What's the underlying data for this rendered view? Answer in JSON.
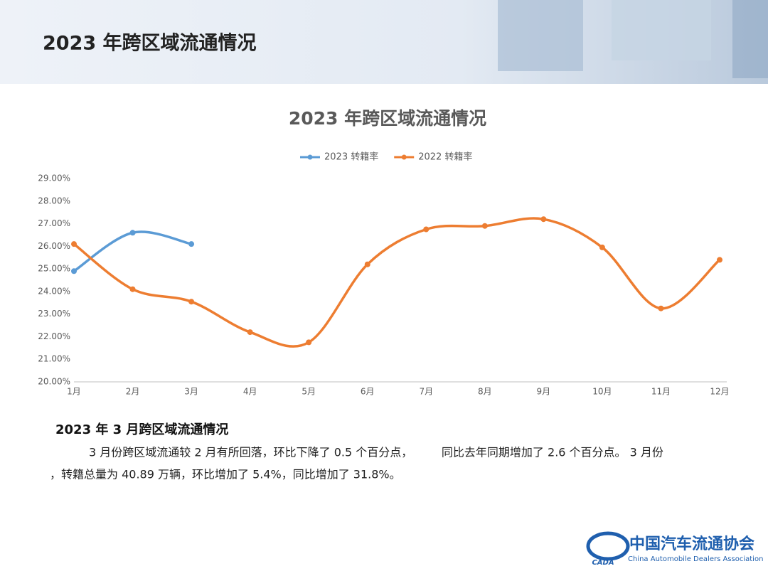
{
  "header": {
    "title": "2023 年跨区域流通情况"
  },
  "chart_data": {
    "type": "line",
    "title": "2023 年跨区域流通情况",
    "categories": [
      "1月",
      "2月",
      "3月",
      "4月",
      "5月",
      "6月",
      "7月",
      "8月",
      "9月",
      "10月",
      "11月",
      "12月"
    ],
    "series": [
      {
        "name": "2023 转籍率",
        "color": "#5b9bd5",
        "values": [
          24.9,
          26.6,
          26.1,
          null,
          null,
          null,
          null,
          null,
          null,
          null,
          null,
          null
        ]
      },
      {
        "name": "2022 转籍率",
        "color": "#ed7d31",
        "values": [
          26.1,
          24.1,
          23.55,
          22.2,
          21.75,
          25.2,
          26.75,
          26.9,
          27.2,
          25.95,
          23.25,
          25.4
        ]
      }
    ],
    "ylim": [
      20,
      29
    ],
    "yticks": [
      {
        "value": 20,
        "label": "20.00%"
      },
      {
        "value": 21,
        "label": "21.00%"
      },
      {
        "value": 22,
        "label": "22.00%"
      },
      {
        "value": 23,
        "label": "23.00%"
      },
      {
        "value": 24,
        "label": "24.00%"
      },
      {
        "value": 25,
        "label": "25.00%"
      },
      {
        "value": 26,
        "label": "26.00%"
      },
      {
        "value": 27,
        "label": "27.00%"
      },
      {
        "value": 28,
        "label": "28.00%"
      },
      {
        "value": 29,
        "label": "29.00%"
      }
    ],
    "legend": "top",
    "smooth": true
  },
  "section": {
    "title": "2023 年 3 月跨区域流通情况",
    "lines": [
      "3 月份跨区域流通较 2 月有所回落，环比下降了 0.5 个百分点，        同比去年同期增加了 2.6 个百分点。 3 月份",
      "，转籍总量为 40.89 万辆，环比增加了 5.4%，同比增加了 31.8%。"
    ]
  },
  "footer": {
    "org": "中国汽车流通协会",
    "org_en": "China Automobile Dealers Association",
    "logo": "CADA"
  }
}
